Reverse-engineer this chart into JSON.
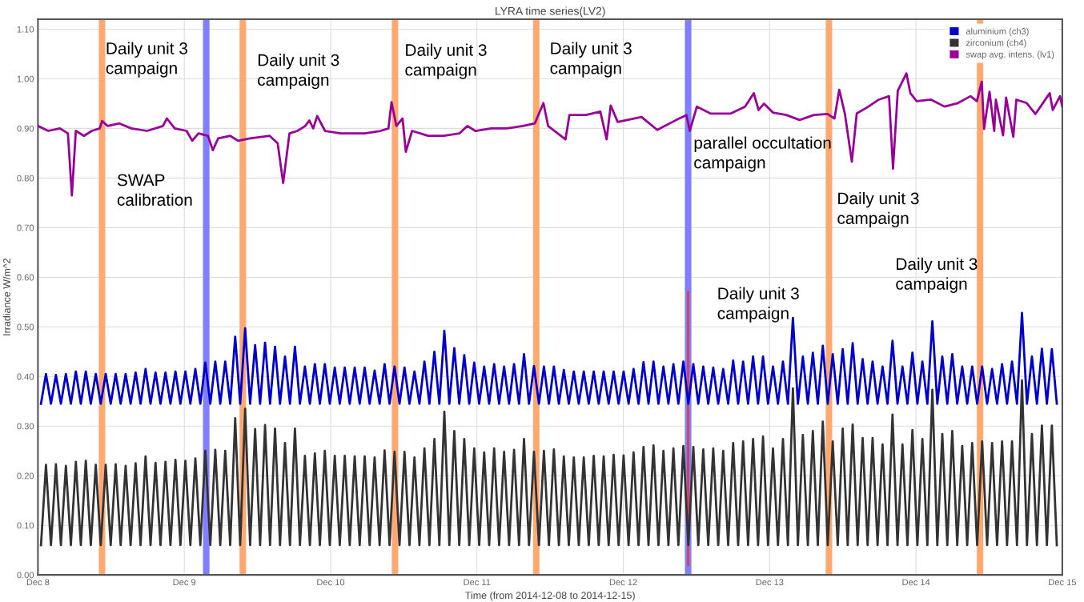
{
  "chart_data": {
    "type": "line",
    "title": "LYRA time series(LV2)",
    "xlabel": "Time (from 2014-12-08 to 2014-12-15)",
    "ylabel": "Irradiance W/m^2",
    "x": [
      "2014-12-08T00:30",
      "2014-12-08T01:19",
      "2014-12-08T02:08",
      "2014-12-08T02:57",
      "2014-12-08T03:46",
      "2014-12-08T04:35",
      "2014-12-08T05:24",
      "2014-12-08T06:13",
      "2014-12-08T07:02",
      "2014-12-08T07:51",
      "2014-12-08T08:40",
      "2014-12-08T09:29",
      "2014-12-08T10:18",
      "2014-12-08T11:07",
      "2014-12-08T11:56",
      "2014-12-08T12:45",
      "2014-12-08T13:34",
      "2014-12-08T14:23",
      "2014-12-08T15:12",
      "2014-12-08T16:01",
      "2014-12-08T16:50",
      "2014-12-08T17:39",
      "2014-12-08T18:28",
      "2014-12-08T19:17",
      "2014-12-08T20:06",
      "2014-12-08T20:55",
      "2014-12-08T21:44",
      "2014-12-08T22:33",
      "2014-12-08T23:22",
      "2014-12-09T00:11",
      "2014-12-09T01:00",
      "2014-12-09T01:49",
      "2014-12-09T02:38",
      "2014-12-09T03:27",
      "2014-12-09T04:16",
      "2014-12-09T05:05",
      "2014-12-09T05:54",
      "2014-12-09T06:43",
      "2014-12-09T07:32",
      "2014-12-09T08:21",
      "2014-12-09T09:10",
      "2014-12-09T09:59",
      "2014-12-09T10:48",
      "2014-12-09T11:37",
      "2014-12-09T12:26",
      "2014-12-09T13:15",
      "2014-12-09T14:04",
      "2014-12-09T14:53",
      "2014-12-09T15:42",
      "2014-12-09T16:31",
      "2014-12-09T17:20",
      "2014-12-09T18:09",
      "2014-12-09T18:58",
      "2014-12-09T19:47",
      "2014-12-09T20:36",
      "2014-12-09T21:25",
      "2014-12-09T22:14",
      "2014-12-09T23:03",
      "2014-12-09T23:52",
      "2014-12-10T00:41",
      "2014-12-10T01:30",
      "2014-12-10T02:19",
      "2014-12-10T03:08",
      "2014-12-10T03:57",
      "2014-12-10T04:46",
      "2014-12-10T05:35",
      "2014-12-10T06:24",
      "2014-12-10T07:13",
      "2014-12-10T08:02",
      "2014-12-10T08:51",
      "2014-12-10T09:40",
      "2014-12-10T10:29",
      "2014-12-10T11:18",
      "2014-12-10T12:07",
      "2014-12-10T12:56",
      "2014-12-10T13:45",
      "2014-12-10T14:34",
      "2014-12-10T15:23",
      "2014-12-10T16:12",
      "2014-12-10T17:01",
      "2014-12-10T17:50",
      "2014-12-10T18:39",
      "2014-12-10T19:28",
      "2014-12-10T20:17",
      "2014-12-10T21:06",
      "2014-12-10T21:55",
      "2014-12-10T22:44",
      "2014-12-10T23:33",
      "2014-12-11T00:22",
      "2014-12-11T01:11",
      "2014-12-11T02:00",
      "2014-12-11T02:49",
      "2014-12-11T03:38",
      "2014-12-11T04:27",
      "2014-12-11T05:16",
      "2014-12-11T06:05",
      "2014-12-11T06:54",
      "2014-12-11T07:43",
      "2014-12-11T08:32",
      "2014-12-11T09:21",
      "2014-12-11T10:10",
      "2014-12-11T10:59",
      "2014-12-11T11:48",
      "2014-12-11T12:37",
      "2014-12-11T13:26",
      "2014-12-11T14:15",
      "2014-12-11T15:04",
      "2014-12-11T15:53",
      "2014-12-11T16:42",
      "2014-12-11T17:31",
      "2014-12-11T18:20",
      "2014-12-11T19:09",
      "2014-12-11T19:58",
      "2014-12-11T20:47",
      "2014-12-11T21:36",
      "2014-12-11T22:25",
      "2014-12-11T23:14",
      "2014-12-12T00:03",
      "2014-12-12T00:52",
      "2014-12-12T01:41",
      "2014-12-12T02:30",
      "2014-12-12T03:19",
      "2014-12-12T04:08",
      "2014-12-12T04:57",
      "2014-12-12T05:46",
      "2014-12-12T06:35",
      "2014-12-12T07:24",
      "2014-12-12T08:13",
      "2014-12-12T09:02",
      "2014-12-12T09:51",
      "2014-12-12T10:40",
      "2014-12-12T11:29",
      "2014-12-12T12:18",
      "2014-12-12T13:07",
      "2014-12-12T13:56",
      "2014-12-12T14:45",
      "2014-12-12T15:34",
      "2014-12-12T16:23",
      "2014-12-12T17:12",
      "2014-12-12T18:01",
      "2014-12-12T18:50",
      "2014-12-12T19:39",
      "2014-12-12T20:28",
      "2014-12-12T21:17",
      "2014-12-12T22:06",
      "2014-12-12T22:55",
      "2014-12-12T23:44",
      "2014-12-13T00:33",
      "2014-12-13T01:22",
      "2014-12-13T02:11",
      "2014-12-13T03:00",
      "2014-12-13T03:49",
      "2014-12-13T04:38",
      "2014-12-13T05:27",
      "2014-12-13T06:16",
      "2014-12-13T07:05",
      "2014-12-13T07:54",
      "2014-12-13T08:43",
      "2014-12-13T09:32",
      "2014-12-13T10:21",
      "2014-12-13T11:10",
      "2014-12-13T11:59",
      "2014-12-13T12:48",
      "2014-12-13T13:37",
      "2014-12-13T14:26",
      "2014-12-13T15:15",
      "2014-12-13T16:04",
      "2014-12-13T16:53",
      "2014-12-13T17:42",
      "2014-12-13T18:31",
      "2014-12-13T19:20",
      "2014-12-13T20:09",
      "2014-12-13T20:58",
      "2014-12-13T21:47",
      "2014-12-13T22:36",
      "2014-12-13T23:25",
      "2014-12-14T00:14",
      "2014-12-14T01:03",
      "2014-12-14T01:52",
      "2014-12-14T02:41",
      "2014-12-14T03:30",
      "2014-12-14T04:19",
      "2014-12-14T05:08",
      "2014-12-14T05:57",
      "2014-12-14T06:46",
      "2014-12-14T07:35",
      "2014-12-14T08:24",
      "2014-12-14T09:13",
      "2014-12-14T10:02",
      "2014-12-14T10:51",
      "2014-12-14T11:40",
      "2014-12-14T12:29",
      "2014-12-14T13:18",
      "2014-12-14T14:07",
      "2014-12-14T14:56",
      "2014-12-14T15:45",
      "2014-12-14T16:34",
      "2014-12-14T17:23",
      "2014-12-14T18:12",
      "2014-12-14T19:01",
      "2014-12-14T19:50",
      "2014-12-14T20:39",
      "2014-12-14T21:28",
      "2014-12-14T22:17",
      "2014-12-14T23:06"
    ],
    "series": [
      {
        "name": "aluminium (ch3)",
        "color": "#0000cc",
        "values": [
          0.345,
          0.405,
          0.345,
          0.403,
          0.345,
          0.405,
          0.345,
          0.41,
          0.345,
          0.41,
          0.345,
          0.405,
          0.345,
          0.405,
          0.345,
          0.405,
          0.345,
          0.405,
          0.345,
          0.408,
          0.345,
          0.415,
          0.345,
          0.408,
          0.345,
          0.408,
          0.345,
          0.41,
          0.345,
          0.41,
          0.345,
          0.415,
          0.345,
          0.428,
          0.345,
          0.43,
          0.345,
          0.43,
          0.345,
          0.48,
          0.345,
          0.497,
          0.345,
          0.463,
          0.345,
          0.468,
          0.345,
          0.46,
          0.345,
          0.44,
          0.345,
          0.46,
          0.345,
          0.42,
          0.345,
          0.425,
          0.345,
          0.425,
          0.345,
          0.418,
          0.345,
          0.418,
          0.345,
          0.418,
          0.345,
          0.418,
          0.345,
          0.412,
          0.345,
          0.425,
          0.345,
          0.42,
          0.345,
          0.418,
          0.345,
          0.41,
          0.345,
          0.43,
          0.345,
          0.45,
          0.345,
          0.492,
          0.345,
          0.457,
          0.345,
          0.443,
          0.345,
          0.428,
          0.345,
          0.42,
          0.345,
          0.425,
          0.345,
          0.42,
          0.345,
          0.425,
          0.345,
          0.445,
          0.345,
          0.421,
          0.345,
          0.42,
          0.345,
          0.42,
          0.345,
          0.413,
          0.345,
          0.41,
          0.345,
          0.41,
          0.345,
          0.41,
          0.345,
          0.41,
          0.345,
          0.41,
          0.345,
          0.41,
          0.345,
          0.415,
          0.345,
          0.429,
          0.345,
          0.43,
          0.345,
          0.42,
          0.345,
          0.425,
          0.345,
          0.43,
          0.345,
          0.425,
          0.345,
          0.42,
          0.345,
          0.418,
          0.345,
          0.415,
          0.345,
          0.432,
          0.345,
          0.43,
          0.345,
          0.44,
          0.345,
          0.44,
          0.345,
          0.42,
          0.345,
          0.43,
          0.345,
          0.518,
          0.345,
          0.44,
          0.345,
          0.448,
          0.345,
          0.462,
          0.345,
          0.445,
          0.345,
          0.455,
          0.345,
          0.467,
          0.345,
          0.435,
          0.345,
          0.43,
          0.345,
          0.42,
          0.345,
          0.472,
          0.345,
          0.42,
          0.345,
          0.448,
          0.345,
          0.43,
          0.345,
          0.511,
          0.345,
          0.44,
          0.345,
          0.445,
          0.345,
          0.42,
          0.345,
          0.42,
          0.345,
          0.42,
          0.345,
          0.415,
          0.345,
          0.425,
          0.345,
          0.43,
          0.345,
          0.528,
          0.345,
          0.44,
          0.345,
          0.456,
          0.345,
          0.455,
          0.345
        ]
      },
      {
        "name": "zirconium (ch4)",
        "color": "#333333",
        "values": [
          0.06,
          0.222,
          0.06,
          0.223,
          0.06,
          0.22,
          0.06,
          0.228,
          0.06,
          0.23,
          0.06,
          0.222,
          0.06,
          0.222,
          0.06,
          0.223,
          0.06,
          0.22,
          0.06,
          0.225,
          0.06,
          0.239,
          0.06,
          0.226,
          0.06,
          0.228,
          0.06,
          0.232,
          0.06,
          0.23,
          0.06,
          0.235,
          0.06,
          0.25,
          0.06,
          0.252,
          0.06,
          0.25,
          0.06,
          0.316,
          0.06,
          0.335,
          0.06,
          0.294,
          0.06,
          0.302,
          0.06,
          0.295,
          0.06,
          0.266,
          0.06,
          0.295,
          0.06,
          0.24,
          0.06,
          0.245,
          0.06,
          0.25,
          0.06,
          0.24,
          0.06,
          0.24,
          0.06,
          0.239,
          0.06,
          0.239,
          0.06,
          0.237,
          0.06,
          0.251,
          0.06,
          0.248,
          0.06,
          0.248,
          0.06,
          0.237,
          0.06,
          0.255,
          0.06,
          0.274,
          0.06,
          0.329,
          0.06,
          0.29,
          0.06,
          0.274,
          0.06,
          0.255,
          0.06,
          0.247,
          0.06,
          0.255,
          0.06,
          0.248,
          0.06,
          0.252,
          0.06,
          0.274,
          0.06,
          0.248,
          0.06,
          0.25,
          0.06,
          0.253,
          0.06,
          0.239,
          0.06,
          0.237,
          0.06,
          0.237,
          0.06,
          0.24,
          0.06,
          0.239,
          0.06,
          0.242,
          0.06,
          0.241,
          0.06,
          0.247,
          0.06,
          0.258,
          0.06,
          0.261,
          0.06,
          0.25,
          0.06,
          0.255,
          0.06,
          0.26,
          0.06,
          0.258,
          0.06,
          0.253,
          0.06,
          0.255,
          0.06,
          0.25,
          0.06,
          0.266,
          0.06,
          0.269,
          0.06,
          0.274,
          0.06,
          0.279,
          0.06,
          0.255,
          0.06,
          0.274,
          0.06,
          0.376,
          0.06,
          0.282,
          0.06,
          0.29,
          0.06,
          0.309,
          0.06,
          0.269,
          0.06,
          0.295,
          0.06,
          0.303,
          0.06,
          0.276,
          0.06,
          0.276,
          0.06,
          0.263,
          0.06,
          0.323,
          0.06,
          0.263,
          0.06,
          0.292,
          0.06,
          0.274,
          0.06,
          0.373,
          0.06,
          0.284,
          0.06,
          0.29,
          0.06,
          0.26,
          0.06,
          0.266,
          0.06,
          0.269,
          0.06,
          0.266,
          0.06,
          0.269,
          0.06,
          0.269,
          0.06,
          0.392,
          0.06,
          0.284,
          0.06,
          0.301,
          0.06,
          0.301,
          0.06
        ]
      },
      {
        "name": "swap avg. intens. (lv1)",
        "color": "#990099",
        "x": [
          "2014-12-08T00:00",
          "2014-12-08T01:41",
          "2014-12-08T03:37",
          "2014-12-08T04:55",
          "2014-12-08T05:34",
          "2014-12-08T06:13",
          "2014-12-08T07:32",
          "2014-12-08T08:50",
          "2014-12-08T10:08",
          "2014-12-08T10:31",
          "2014-12-08T11:25",
          "2014-12-08T13:22",
          "2014-12-08T15:19",
          "2014-12-08T17:54",
          "2014-12-08T20:30",
          "2014-12-08T21:09",
          "2014-12-08T22:26",
          "2014-12-09T00:23",
          "2014-12-09T01:18",
          "2014-12-09T02:20",
          "2014-12-09T03:53",
          "2014-12-09T04:41",
          "2014-12-09T05:34",
          "2014-12-09T07:32",
          "2014-12-09T08:50",
          "2014-12-09T10:47",
          "2014-12-09T14:01",
          "2014-12-09T15:19",
          "2014-12-09T16:13",
          "2014-12-09T17:15",
          "2014-12-09T18:33",
          "2014-12-09T19:51",
          "2014-12-09T20:30",
          "2014-12-09T21:09",
          "2014-12-09T21:48",
          "2014-12-09T23:05",
          "2014-12-10T01:41",
          "2014-12-10T05:34",
          "2014-12-10T08:11",
          "2014-12-10T09:29",
          "2014-12-10T09:59",
          "2014-12-10T10:47",
          "2014-12-10T11:48",
          "2014-12-10T12:20",
          "2014-12-10T13:22",
          "2014-12-10T15:58",
          "2014-12-10T18:33",
          "2014-12-10T21:09",
          "2014-12-10T22:26",
          "2014-12-10T23:44",
          "2014-12-11T02:20",
          "2014-12-11T04:55",
          "2014-12-11T07:32",
          "2014-12-11T09:29",
          "2014-12-11T10:54",
          "2014-12-11T11:40",
          "2014-12-11T14:31",
          "2014-12-11T15:10",
          "2014-12-11T17:54",
          "2014-12-11T20:14",
          "2014-12-11T21:16",
          "2014-12-11T21:56",
          "2014-12-11T23:05",
          "2014-12-12T02:59",
          "2014-12-12T05:34",
          "2014-12-12T08:41",
          "2014-12-12T10:22",
          "2014-12-12T10:54",
          "2014-12-12T12:04",
          "2014-12-12T14:17",
          "2014-12-12T17:38",
          "2014-12-12T19:58",
          "2014-12-12T21:24",
          "2014-12-12T22:11",
          "2014-12-12T23:05",
          "2014-12-13T00:32",
          "2014-12-13T02:44",
          "2014-12-13T04:55",
          "2014-12-13T07:16",
          "2014-12-13T09:29",
          "2014-12-13T10:38",
          "2014-12-13T11:25",
          "2014-12-13T12:20",
          "2014-12-13T13:29",
          "2014-12-13T14:17",
          "2014-12-13T16:13",
          "2014-12-13T17:54",
          "2014-12-13T19:35",
          "2014-12-13T20:14",
          "2014-12-13T21:01",
          "2014-12-13T22:26",
          "2014-12-13T23:05",
          "2014-12-14T00:07",
          "2014-12-14T02:28",
          "2014-12-14T04:41",
          "2014-12-14T06:52",
          "2014-12-14T08:57",
          "2014-12-14T09:59",
          "2014-12-14T10:47",
          "2014-12-14T11:10",
          "2014-12-14T12:04",
          "2014-12-14T12:50",
          "2014-12-14T13:06",
          "2014-12-14T14:17",
          "2014-12-14T14:47",
          "2014-12-14T15:58",
          "2014-12-14T16:28",
          "2014-12-14T18:10",
          "2014-12-14T19:35",
          "2014-12-14T21:56",
          "2014-12-14T22:26",
          "2014-12-14T23:37",
          "2014-12-15T00:00"
        ],
        "values": [
          0.905,
          0.895,
          0.9,
          0.89,
          0.765,
          0.895,
          0.885,
          0.895,
          0.9,
          0.915,
          0.905,
          0.91,
          0.9,
          0.895,
          0.905,
          0.92,
          0.9,
          0.895,
          0.875,
          0.89,
          0.885,
          0.856,
          0.88,
          0.885,
          0.875,
          0.88,
          0.885,
          0.87,
          0.79,
          0.89,
          0.895,
          0.905,
          0.916,
          0.9,
          0.925,
          0.895,
          0.89,
          0.89,
          0.895,
          0.9,
          0.953,
          0.905,
          0.92,
          0.853,
          0.895,
          0.885,
          0.885,
          0.89,
          0.905,
          0.895,
          0.9,
          0.9,
          0.905,
          0.91,
          0.951,
          0.905,
          0.878,
          0.927,
          0.927,
          0.934,
          0.878,
          0.946,
          0.913,
          0.923,
          0.897,
          0.917,
          0.927,
          0.895,
          0.944,
          0.93,
          0.93,
          0.944,
          0.971,
          0.937,
          0.95,
          0.932,
          0.927,
          0.917,
          0.927,
          0.929,
          0.92,
          0.978,
          0.93,
          0.833,
          0.93,
          0.944,
          0.958,
          0.965,
          0.819,
          0.976,
          1.011,
          0.971,
          0.955,
          0.958,
          0.944,
          0.951,
          0.965,
          0.955,
          0.994,
          0.899,
          0.974,
          0.895,
          0.958,
          0.886,
          0.962,
          0.883,
          0.958,
          0.951,
          0.929,
          0.971,
          0.937,
          0.965,
          0.944
        ]
      },
      {
        "type": "line",
        "color": "#d9404f",
        "x": [
          "2014-12-12T10:38",
          "2014-12-12T10:38"
        ],
        "values": [
          0.02,
          0.57
        ]
      }
    ],
    "bands": [
      {
        "axis": "x",
        "from": "2014-12-08T09:59",
        "to": "2014-12-08T11:02",
        "color": "#ffa870"
      },
      {
        "axis": "x",
        "from": "2014-12-09T03:04",
        "to": "2014-12-09T04:08",
        "color": "#7f7fff"
      },
      {
        "axis": "x",
        "from": "2014-12-09T09:04",
        "to": "2014-12-09T10:08",
        "color": "#ffa870"
      },
      {
        "axis": "x",
        "from": "2014-12-10T10:02",
        "to": "2014-12-10T11:05",
        "color": "#ffa870"
      },
      {
        "axis": "x",
        "from": "2014-12-11T09:12",
        "to": "2014-12-11T10:15",
        "color": "#ffa870"
      },
      {
        "axis": "x",
        "from": "2014-12-12T10:06",
        "to": "2014-12-12T11:10",
        "color": "#7f7fff"
      },
      {
        "axis": "x",
        "from": "2014-12-13T09:12",
        "to": "2014-12-13T10:15",
        "color": "#ffa870"
      },
      {
        "axis": "x",
        "from": "2014-12-14T09:59",
        "to": "2014-12-14T11:02",
        "color": "#ffa870"
      }
    ],
    "annotations": [
      "Daily unit 3\ncampaign",
      "SWAP\ncalibration",
      "Daily unit 3\ncampaign",
      "Daily unit 3\ncampaign",
      "Daily unit 3\ncampaign",
      "parallel occultation\ncampaign",
      "Daily unit 3\ncampaign",
      "Daily unit 3\ncampaign",
      "Daily unit 3\ncampaign"
    ],
    "xlim": [
      "2014-12-08",
      "2014-12-15"
    ],
    "ylim": [
      0,
      1.12
    ],
    "xticks": [
      {
        "value": "2014-12-08",
        "label": "Dec 8"
      },
      {
        "value": "2014-12-09",
        "label": "Dec 9"
      },
      {
        "value": "2014-12-10",
        "label": "Dec 10"
      },
      {
        "value": "2014-12-11",
        "label": "Dec 11"
      },
      {
        "value": "2014-12-12",
        "label": "Dec 12"
      },
      {
        "value": "2014-12-13",
        "label": "Dec 13"
      },
      {
        "value": "2014-12-14",
        "label": "Dec 14"
      },
      {
        "value": "2014-12-15",
        "label": "Dec 15"
      }
    ],
    "yticks": [
      {
        "value": 0,
        "label": "0.00"
      },
      {
        "value": 0.1,
        "label": "0.10"
      },
      {
        "value": 0.2,
        "label": "0.20"
      },
      {
        "value": 0.3,
        "label": "0.30"
      },
      {
        "value": 0.4,
        "label": "0.40"
      },
      {
        "value": 0.5,
        "label": "0.50"
      },
      {
        "value": 0.6,
        "label": "0.60"
      },
      {
        "value": 0.7,
        "label": "0.70"
      },
      {
        "value": 0.8,
        "label": "0.80"
      },
      {
        "value": 0.9,
        "label": "0.90"
      },
      {
        "value": 1.0,
        "label": "1.00"
      },
      {
        "value": 1.1,
        "label": "1.10"
      }
    ],
    "grid": true,
    "legend": "top right",
    "marker": "none",
    "line_style": "solid"
  }
}
